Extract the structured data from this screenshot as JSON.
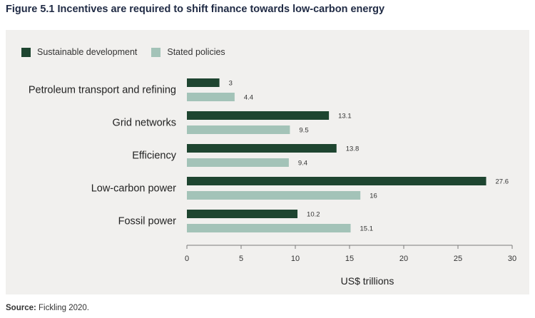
{
  "figure": {
    "number": "Figure 5.1",
    "title": "Incentives are required to shift finance towards low-carbon energy"
  },
  "source": {
    "label": "Source:",
    "text": "Fickling 2020."
  },
  "colors": {
    "sustainable": "#1e4530",
    "stated": "#a3c3b8",
    "axis": "#7a7a7a",
    "panel": "#f1f0ee"
  },
  "chart_data": {
    "type": "bar",
    "orientation": "horizontal",
    "categories": [
      "Petroleum transport and refining",
      "Grid networks",
      "Efficiency",
      "Low-carbon power",
      "Fossil power"
    ],
    "series": [
      {
        "name": "Sustainable development",
        "values": [
          3,
          13.1,
          13.8,
          27.6,
          10.2
        ],
        "labels": [
          "3",
          "13.1",
          "13.8",
          "27.6",
          "10.2"
        ]
      },
      {
        "name": "Stated policies",
        "values": [
          4.4,
          9.5,
          9.4,
          16,
          15.1
        ],
        "labels": [
          "4.4",
          "9.5",
          "9.4",
          "16",
          "15.1"
        ]
      }
    ],
    "xlabel": "US$ trillions",
    "xlim": [
      0,
      30
    ],
    "xticks": [
      0,
      5,
      10,
      15,
      20,
      25,
      30
    ],
    "legend": "top-left",
    "grid": false
  }
}
